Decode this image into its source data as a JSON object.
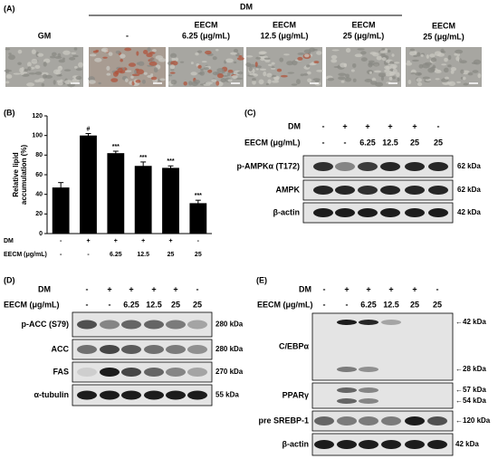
{
  "panel_a": {
    "label": "(A)",
    "group": "DM",
    "columns": [
      [
        "GM"
      ],
      [
        "-"
      ],
      [
        "EECM",
        "6.25 (μg/mL)"
      ],
      [
        "EECM",
        "12.5 (μg/mL)"
      ],
      [
        "EECM",
        "25 (μg/mL)"
      ],
      [
        "EECM",
        "25 (μg/mL)"
      ]
    ]
  },
  "chart_data": {
    "type": "bar",
    "panel_label": "(B)",
    "ylabel": [
      "Relative lipid",
      "accumulation (%)"
    ],
    "values": [
      47,
      100,
      82,
      69,
      67,
      31
    ],
    "errors": [
      5,
      2,
      2,
      4,
      2,
      3
    ],
    "annotations": [
      null,
      "#",
      "***",
      "***",
      "***",
      "***"
    ],
    "color": "#000000",
    "ylim": [
      0,
      120
    ],
    "yticks": [
      0,
      20,
      40,
      60,
      80,
      100,
      120
    ],
    "condition_rows": [
      {
        "label": "DM",
        "values": [
          "-",
          "+",
          "+",
          "+",
          "+",
          "-"
        ]
      },
      {
        "label": "EECM (μg/mL)",
        "values": [
          "-",
          "-",
          "6.25",
          "12.5",
          "25",
          "25"
        ]
      }
    ]
  },
  "panel_c": {
    "label": "(C)",
    "condition_rows": [
      {
        "label": "DM",
        "values": [
          "-",
          "+",
          "+",
          "+",
          "+",
          "-"
        ]
      },
      {
        "label": "EECM (μg/mL)",
        "values": [
          "-",
          "-",
          "6.25",
          "12.5",
          "25",
          "25"
        ]
      }
    ],
    "blots": [
      {
        "name": "p-AMPKα (T172)",
        "sizes": [
          "62 kDa"
        ]
      },
      {
        "name": "AMPK",
        "sizes": [
          "62 kDa"
        ]
      },
      {
        "name": "β-actin",
        "sizes": [
          "42 kDa"
        ]
      }
    ]
  },
  "panel_d": {
    "label": "(D)",
    "condition_rows": [
      {
        "label": "DM",
        "values": [
          "-",
          "+",
          "+",
          "+",
          "+",
          "-"
        ]
      },
      {
        "label": "EECM (μg/mL)",
        "values": [
          "-",
          "-",
          "6.25",
          "12.5",
          "25",
          "25"
        ]
      }
    ],
    "blots": [
      {
        "name": "p-ACC (S79)",
        "sizes": [
          "280 kDa"
        ]
      },
      {
        "name": "ACC",
        "sizes": [
          "280 kDa"
        ]
      },
      {
        "name": "FAS",
        "sizes": [
          "270 kDa"
        ]
      },
      {
        "name": "α-tubulin",
        "sizes": [
          "55 kDa"
        ]
      }
    ]
  },
  "panel_e": {
    "label": "(E)",
    "condition_rows": [
      {
        "label": "DM",
        "values": [
          "-",
          "+",
          "+",
          "+",
          "+",
          "-"
        ]
      },
      {
        "label": "EECM (μg/mL)",
        "values": [
          "-",
          "-",
          "6.25",
          "12.5",
          "25",
          "25"
        ]
      }
    ],
    "blots": [
      {
        "name": "C/EBPα",
        "sizes": [
          "←42 kDa",
          "←28 kDa"
        ]
      },
      {
        "name": "PPARγ",
        "sizes": [
          "←57 kDa",
          "←54 kDa"
        ]
      },
      {
        "name": "pre SREBP-1",
        "sizes": [
          "←120 kDa"
        ]
      },
      {
        "name": "β-actin",
        "sizes": [
          "42 kDa"
        ]
      }
    ]
  }
}
